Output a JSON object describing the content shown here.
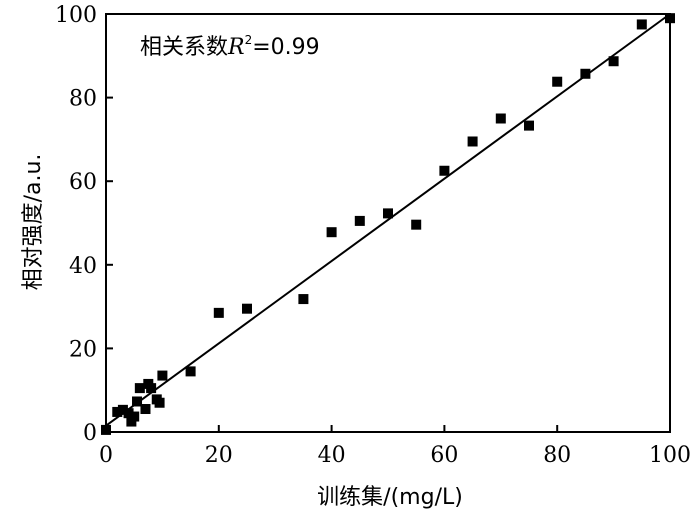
{
  "chart_data": {
    "type": "scatter",
    "xlabel": "训练集/(mg/L)",
    "ylabel": "相对强度/a.u.",
    "xlim": [
      0,
      100
    ],
    "ylim": [
      0,
      100
    ],
    "xticks": [
      0,
      20,
      40,
      60,
      80,
      100
    ],
    "yticks": [
      0,
      20,
      40,
      60,
      80,
      100
    ],
    "grid": false,
    "annotation": {
      "prefix": "相关系数",
      "variable": "R",
      "superscript": "2",
      "value_text": "=0.99"
    },
    "points": [
      {
        "x": 0,
        "y": 0.5
      },
      {
        "x": 2,
        "y": 4.8
      },
      {
        "x": 3,
        "y": 5.3
      },
      {
        "x": 4,
        "y": 4.5
      },
      {
        "x": 4.5,
        "y": 2.5
      },
      {
        "x": 5,
        "y": 3.7
      },
      {
        "x": 5.5,
        "y": 7.3
      },
      {
        "x": 6,
        "y": 10.5
      },
      {
        "x": 7,
        "y": 5.5
      },
      {
        "x": 7.5,
        "y": 11.5
      },
      {
        "x": 8,
        "y": 10.5
      },
      {
        "x": 9,
        "y": 7.8
      },
      {
        "x": 9.5,
        "y": 7
      },
      {
        "x": 10,
        "y": 13.5
      },
      {
        "x": 15,
        "y": 14.5
      },
      {
        "x": 20,
        "y": 28.5
      },
      {
        "x": 25,
        "y": 29.5
      },
      {
        "x": 35,
        "y": 31.8
      },
      {
        "x": 40,
        "y": 47.8
      },
      {
        "x": 45,
        "y": 50.5
      },
      {
        "x": 50,
        "y": 52.3
      },
      {
        "x": 55,
        "y": 49.6
      },
      {
        "x": 60,
        "y": 62.5
      },
      {
        "x": 65,
        "y": 69.5
      },
      {
        "x": 70,
        "y": 75
      },
      {
        "x": 75,
        "y": 73.3
      },
      {
        "x": 80,
        "y": 83.8
      },
      {
        "x": 85,
        "y": 85.7
      },
      {
        "x": 90,
        "y": 88.7
      },
      {
        "x": 95,
        "y": 97.5
      },
      {
        "x": 100,
        "y": 99
      }
    ],
    "fit_line": {
      "x": [
        0,
        100
      ],
      "y": [
        1.5,
        100
      ]
    }
  }
}
